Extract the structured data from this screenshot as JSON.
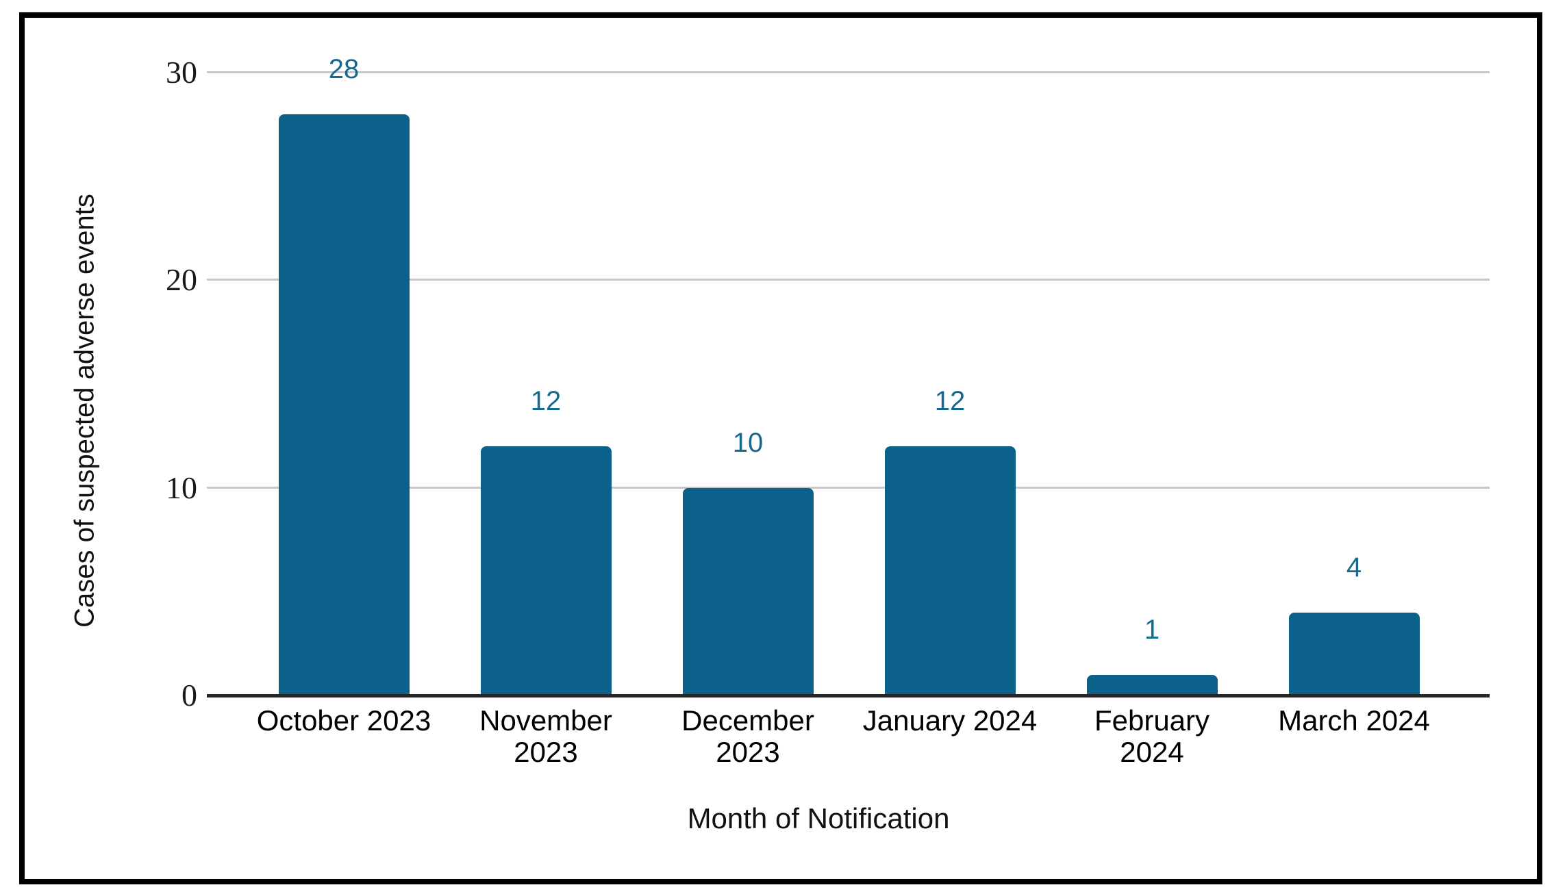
{
  "chart_data": {
    "type": "bar",
    "title": "",
    "xlabel": "Month of Notification",
    "ylabel": "Cases of suspected adverse events",
    "categories": [
      "October 2023",
      "November 2023",
      "December 2023",
      "January 2024",
      "February 2024",
      "March 2024"
    ],
    "values": [
      28,
      12,
      10,
      12,
      1,
      4
    ],
    "value_labels": [
      "28",
      "12",
      "10",
      "12",
      "1",
      "4"
    ],
    "yticks": [
      0,
      10,
      20,
      30
    ],
    "ylim": [
      0,
      30
    ],
    "grid": "horizontal gridlines at 10, 20, 30",
    "legend": "none",
    "bar_color": "#0b618a",
    "value_label_color": "#16688e",
    "gridline_color": "#c8c8c8",
    "axis_line_color": "#262626",
    "frame_border_color": "#000000"
  }
}
